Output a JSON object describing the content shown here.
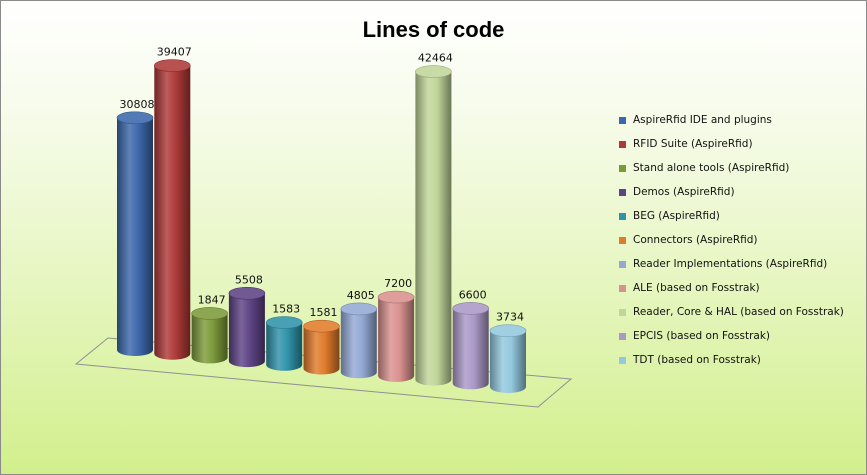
{
  "chart_data": {
    "type": "bar",
    "title": "Lines of code",
    "categories": [
      "AspireRfid IDE and plugins",
      "RFID Suite (AspireRfid)",
      "Stand alone tools (AspireRfid)",
      "Demos (AspireRfid)",
      "BEG (AspireRfid)",
      "Connectors (AspireRfid)",
      "Reader Implementations  (AspireRfid)",
      "ALE (based on Fosstrak)",
      "Reader, Core & HAL (based on Fosstrak)",
      "EPCIS (based on Fosstrak)",
      "TDT (based on Fosstrak)"
    ],
    "values": [
      30808,
      39407,
      1847,
      5508,
      1583,
      1581,
      4805,
      7200,
      42464,
      6600,
      3734
    ],
    "colors": [
      "#3c68ab",
      "#ad3a38",
      "#7c9a3a",
      "#5e4385",
      "#2f93aa",
      "#e07b2b",
      "#93a9d4",
      "#d9918f",
      "#c1d69a",
      "#aa98c7",
      "#93c8de"
    ],
    "xlabel": "",
    "ylabel": "",
    "style": "3d-cylinder",
    "grid": false,
    "legend_position": "right"
  }
}
